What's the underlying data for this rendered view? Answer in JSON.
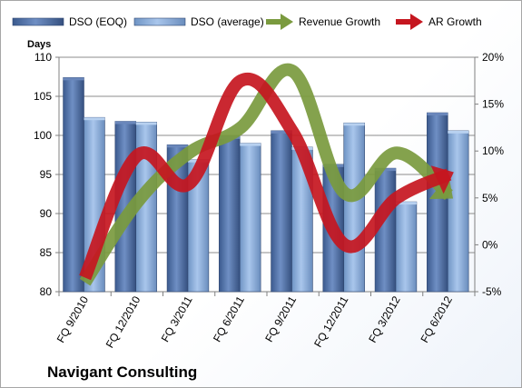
{
  "chart_data": {
    "type": "bar",
    "title": "Navigant Consulting",
    "ylabel_left": "Days",
    "categories": [
      "FQ 9/2010",
      "FQ 12/2010",
      "FQ 3/2011",
      "FQ 6/2011",
      "FQ 9/2011",
      "FQ 12/2011",
      "FQ 3/2012",
      "FQ 6/2012"
    ],
    "left_axis": {
      "min": 80,
      "max": 110,
      "ticks": [
        "80",
        "85",
        "90",
        "95",
        "100",
        "105",
        "110"
      ]
    },
    "right_axis": {
      "min": -5,
      "max": 20,
      "ticks": [
        "-5%",
        "0%",
        "5%",
        "10%",
        "15%",
        "20%"
      ]
    },
    "series": [
      {
        "name": "DSO (EOQ)",
        "type": "bar",
        "axis": "left",
        "color": "#4f6fa5",
        "values": [
          107.4,
          101.8,
          98.8,
          99.9,
          100.6,
          96.3,
          95.8,
          102.9
        ]
      },
      {
        "name": "DSO (average)",
        "type": "bar",
        "axis": "left",
        "color": "#8eb4e3",
        "values": [
          102.3,
          101.7,
          96.9,
          99.0,
          98.5,
          101.6,
          91.5,
          100.6
        ]
      },
      {
        "name": "Revenue Growth",
        "type": "line",
        "axis": "right",
        "color": "#77933c",
        "values": [
          -4.0,
          4.5,
          9.8,
          12.5,
          18.5,
          5.5,
          9.8,
          5.3
        ]
      },
      {
        "name": "AR Growth",
        "type": "line",
        "axis": "right",
        "color": "#c0182a",
        "values": [
          -3.5,
          9.5,
          6.5,
          17.5,
          12.0,
          0.0,
          5.0,
          7.5
        ]
      }
    ],
    "grid": true,
    "legend_position": "top"
  }
}
